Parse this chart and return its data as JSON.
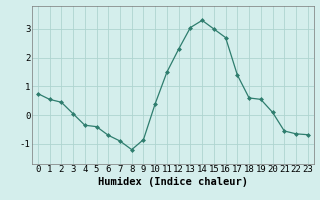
{
  "x": [
    0,
    1,
    2,
    3,
    4,
    5,
    6,
    7,
    8,
    9,
    10,
    11,
    12,
    13,
    14,
    15,
    16,
    17,
    18,
    19,
    20,
    21,
    22,
    23
  ],
  "y": [
    0.75,
    0.55,
    0.45,
    0.05,
    -0.35,
    -0.4,
    -0.7,
    -0.9,
    -1.2,
    -0.85,
    0.4,
    1.5,
    2.3,
    3.05,
    3.3,
    3.0,
    2.7,
    1.4,
    0.6,
    0.55,
    0.1,
    -0.55,
    -0.65,
    -0.68
  ],
  "line_color": "#2e7d6e",
  "marker": "D",
  "marker_size": 2,
  "bg_color": "#d4eeec",
  "grid_color": "#aed4d0",
  "xlabel": "Humidex (Indice chaleur)",
  "ylim": [
    -1.7,
    3.8
  ],
  "xlim": [
    -0.5,
    23.5
  ],
  "yticks": [
    -1,
    0,
    1,
    2,
    3
  ],
  "xticks": [
    0,
    1,
    2,
    3,
    4,
    5,
    6,
    7,
    8,
    9,
    10,
    11,
    12,
    13,
    14,
    15,
    16,
    17,
    18,
    19,
    20,
    21,
    22,
    23
  ],
  "xlabel_fontsize": 7.5,
  "tick_fontsize": 6.5
}
